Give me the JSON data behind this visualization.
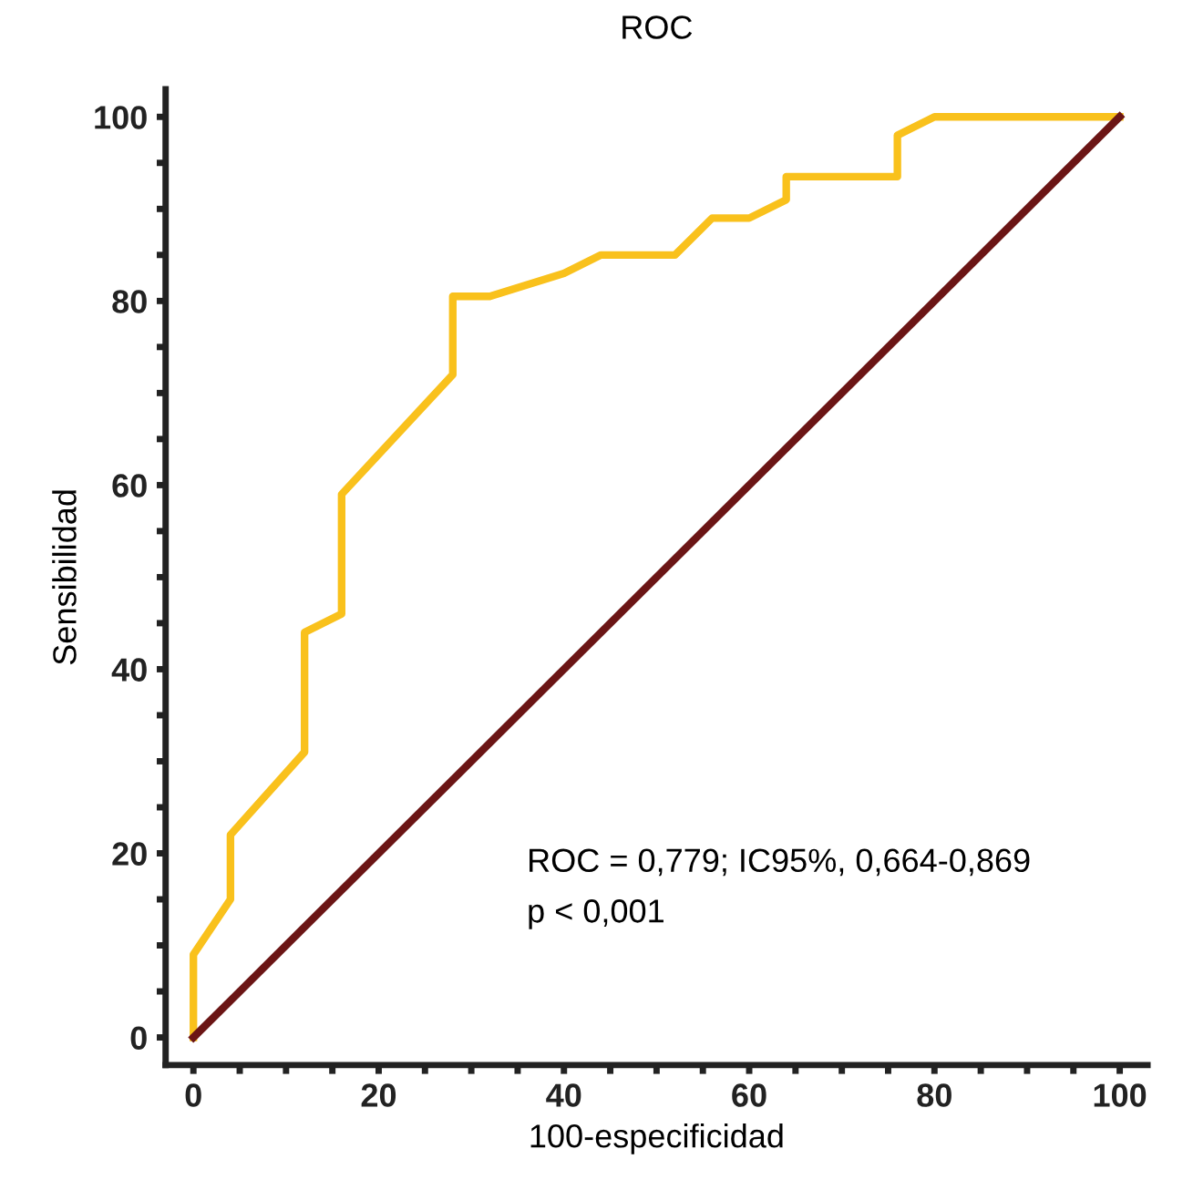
{
  "chart_data": {
    "type": "line",
    "title": "ROC",
    "xlabel": "100-especificidad",
    "ylabel": "Sensibilidad",
    "xlim": [
      -3,
      103
    ],
    "ylim": [
      -3,
      103
    ],
    "xticks": [
      0,
      {
        "value": 5,
        "label": null
      },
      {
        "value": 10,
        "label": null
      },
      {
        "value": 15,
        "label": null
      },
      20,
      {
        "value": 25,
        "label": null
      },
      {
        "value": 30,
        "label": null
      },
      {
        "value": 35,
        "label": null
      },
      40,
      {
        "value": 45,
        "label": null
      },
      {
        "value": 50,
        "label": null
      },
      {
        "value": 55,
        "label": null
      },
      60,
      {
        "value": 65,
        "label": null
      },
      {
        "value": 70,
        "label": null
      },
      {
        "value": 75,
        "label": null
      },
      80,
      {
        "value": 85,
        "label": null
      },
      {
        "value": 90,
        "label": null
      },
      {
        "value": 95,
        "label": null
      },
      100
    ],
    "yticks": [
      0,
      {
        "value": 5,
        "label": null
      },
      {
        "value": 10,
        "label": null
      },
      {
        "value": 15,
        "label": null
      },
      20,
      {
        "value": 25,
        "label": null
      },
      {
        "value": 30,
        "label": null
      },
      {
        "value": 35,
        "label": null
      },
      40,
      {
        "value": 45,
        "label": null
      },
      {
        "value": 50,
        "label": null
      },
      {
        "value": 55,
        "label": null
      },
      60,
      {
        "value": 65,
        "label": null
      },
      {
        "value": 70,
        "label": null
      },
      {
        "value": 75,
        "label": null
      },
      80,
      {
        "value": 85,
        "label": null
      },
      {
        "value": 90,
        "label": null
      },
      {
        "value": 95,
        "label": null
      },
      100
    ],
    "grid": false,
    "legend": false,
    "marker": "none",
    "line_style": "solid",
    "series": [
      {
        "color": "#f9c11c",
        "x": [
          0,
          0,
          4,
          4,
          12,
          12,
          16,
          16,
          28,
          28,
          32,
          40,
          44,
          52,
          56,
          60,
          64,
          64,
          76,
          76,
          80,
          100
        ],
        "values": [
          0,
          9,
          15,
          22,
          31,
          44,
          46,
          59,
          72,
          80.5,
          80.5,
          83,
          85,
          85,
          89,
          89,
          91,
          93.5,
          93.5,
          98,
          100,
          100
        ]
      },
      {
        "color": "#6b1515",
        "x": [
          0,
          100
        ],
        "values": [
          0,
          100
        ]
      }
    ],
    "annotations": [
      "ROC = 0,779; IC95%, 0,664-0,869",
      "p < 0,001"
    ]
  }
}
